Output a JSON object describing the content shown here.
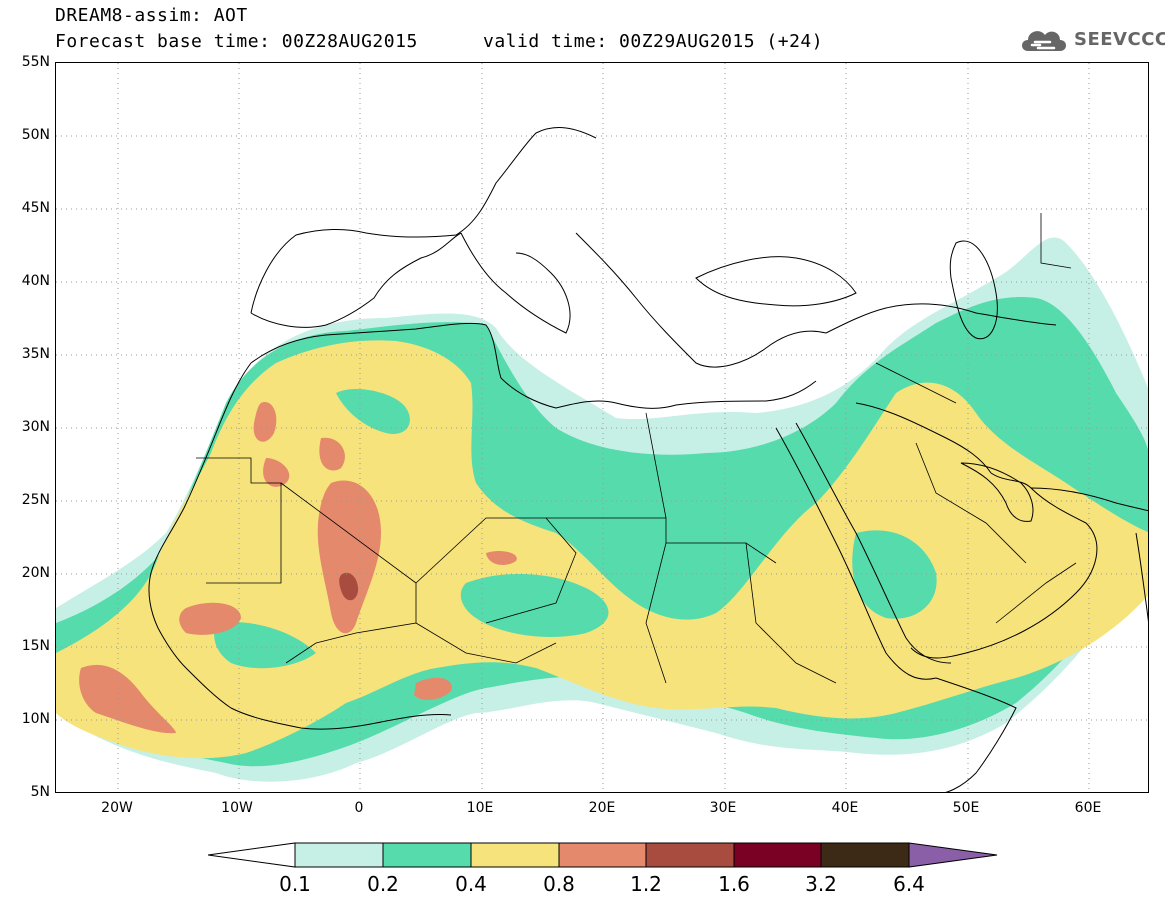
{
  "title": {
    "line1": "DREAM8-assim: AOT",
    "line2": "Forecast base time: 00Z28AUG2015",
    "valid": "valid time: 00Z29AUG2015 (+24)"
  },
  "logo": {
    "text": "SEEVCCC",
    "icon": "cloud-icon"
  },
  "map": {
    "projection": "cylindrical equidistant",
    "lon_range": [
      -25,
      65
    ],
    "lat_range": [
      5,
      55
    ],
    "lat_labels": [
      "55N",
      "50N",
      "45N",
      "40N",
      "35N",
      "30N",
      "25N",
      "20N",
      "15N",
      "10N",
      "5N"
    ],
    "lon_labels": [
      "20W",
      "10W",
      "0",
      "10E",
      "20E",
      "30E",
      "40E",
      "50E",
      "60E"
    ],
    "grid": "dotted"
  },
  "colorbar": {
    "levels": [
      "0.1",
      "0.2",
      "0.4",
      "0.8",
      "1.2",
      "1.6",
      "3.2",
      "6.4"
    ],
    "colors": [
      "#c6efe6",
      "#56dbad",
      "#f7e37b",
      "#e4896b",
      "#a84c3f",
      "#7a0024",
      "#3d2a16"
    ],
    "under_color": "#ffffff",
    "over_color": "#8a5fa8"
  }
}
